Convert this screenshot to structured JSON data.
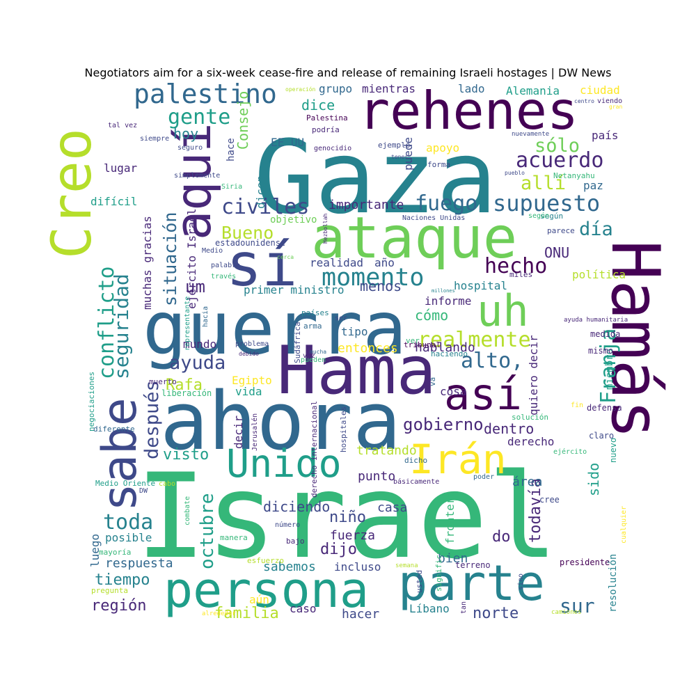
{
  "title": "Negotiators aim for a six-week cease-fire and release of remaining Israeli hostages | DW News",
  "palette": [
    "#440154",
    "#482878",
    "#3e4989",
    "#31688e",
    "#26828e",
    "#1f9e89",
    "#35b779",
    "#6ece58",
    "#b5de2b",
    "#fde725"
  ],
  "words": [
    "Israel",
    "Gaza",
    "ahora",
    "guerra",
    "Hamás",
    "Hama",
    "ataque",
    "sí",
    "rehenes",
    "Creo",
    "persona",
    "parte",
    "aquí",
    "sabe",
    "uh",
    "Unido",
    "Irán",
    "así",
    "momento",
    "palestino",
    "supuesto",
    "civiles",
    "fuego",
    "acuerdo",
    "realmente",
    "hecho",
    "alto,",
    "gente",
    "Franja",
    "conflicto",
    "seguridad",
    "después",
    "toda",
    "octubre",
    "situación",
    "ayuda",
    "sólo",
    "allí",
    "Bueno",
    "día",
    "gobierno",
    "todavía",
    "sur",
    "norte",
    "región",
    "tiempo",
    "familia",
    "dijo",
    "niño",
    "visto",
    "Rafa",
    "dice",
    "hoy",
    "um",
    "Consejo",
    "importante",
    "menos",
    "cómo",
    "ONU",
    "dentro",
    "derecho",
    "sido",
    "do",
    "diciendo",
    "casa",
    "hablando",
    "entonces",
    "fuerza",
    "punto",
    "tratando",
    "hacer",
    "caso",
    "Líbano",
    "aún",
    "sabemos",
    "incluso",
    "respuesta",
    "posible",
    "luego",
    "mundo",
    "vida",
    "decir",
    "Egipto",
    "tipo",
    "informe",
    "hospital",
    "política",
    "paz",
    "país",
    "ciudad",
    "Alemania",
    "lado",
    "mientras",
    "grupo",
    "puede",
    "apoyo",
    "EE UU",
    "hace",
    "dicen",
    "lugar",
    "difícil",
    "ejército Israel",
    "muchas gracias",
    "primer ministro",
    "realidad",
    "año",
    "objetivo",
    "estadounidense",
    "Palestina",
    "podría",
    "ejemplo",
    "forma",
    "Netanyahu",
    "según",
    "parece",
    "miles",
    "frontera",
    "bien",
    "área",
    "cosa",
    "quiero decir",
    "miembro",
    "medida",
    "mismo",
    "defensa",
    "claro",
    "nuevo",
    "cree",
    "presidente",
    "resolución",
    "terreno",
    "sino",
    "significa",
    "usted",
    "tan",
    "semana",
    "bajo",
    "esfuerzo",
    "manera",
    "número",
    "mayoría",
    "pregunta",
    "alrededor",
    "camiones",
    "vez",
    "pueden",
    "países",
    "arma",
    "ser",
    "hacia",
    "representante",
    "Sudáfrica",
    "derecho internacional",
    "hospitales",
    "tribunal",
    "va",
    "ver",
    "haciendo",
    "liberación",
    "muerto",
    "negociaciones",
    "diferente",
    "Medio Oriente",
    "DW",
    "cabo",
    "combate",
    "Jerusalén",
    "solución",
    "ejército",
    "poder",
    "básicamente",
    "dicho",
    "fin",
    "cualquier",
    "ayuda humanitaria",
    "Siria",
    "simplemente",
    "siempre",
    "seguro",
    "tal vez",
    "operación",
    "centro",
    "viendo",
    "gran",
    "tener",
    "pueblo",
    "nuevamente",
    "genocidio",
    "Naciones Unidas",
    "Hezbollah",
    "cerca",
    "millones",
    "Medio",
    "palabra",
    "través",
    "problema",
    "debido",
    "mucha",
    "según"
  ]
}
